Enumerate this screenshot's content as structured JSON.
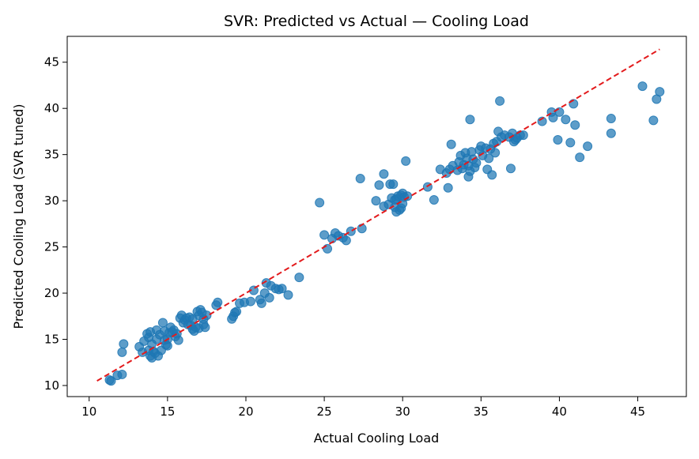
{
  "chart_data": {
    "type": "scatter",
    "title": "SVR: Predicted vs Actual — Cooling Load",
    "xlabel": "Actual Cooling Load",
    "ylabel": "Predicted Cooling Load (SVR tuned)",
    "xlim": [
      8.6,
      48.1
    ],
    "ylim": [
      8.8,
      47.8
    ],
    "xticks": [
      10,
      15,
      20,
      25,
      30,
      35,
      40,
      45
    ],
    "yticks": [
      10,
      15,
      20,
      25,
      30,
      35,
      40,
      45
    ],
    "grid": false,
    "point_color": "#1f77b4",
    "line_color": "#e31a1c",
    "reference_line": {
      "style": "dashed",
      "from": [
        10.5,
        10.5
      ],
      "to": [
        46.4,
        46.4
      ]
    },
    "points": [
      [
        11.3,
        10.6
      ],
      [
        11.4,
        10.5
      ],
      [
        11.8,
        11.1
      ],
      [
        12.1,
        11.2
      ],
      [
        12.1,
        13.6
      ],
      [
        12.2,
        14.5
      ],
      [
        13.2,
        14.2
      ],
      [
        13.4,
        13.6
      ],
      [
        13.5,
        14.8
      ],
      [
        13.7,
        15.6
      ],
      [
        13.8,
        13.8
      ],
      [
        13.8,
        15.2
      ],
      [
        13.9,
        15.8
      ],
      [
        13.9,
        13.2
      ],
      [
        14.0,
        14.5
      ],
      [
        14.0,
        13.0
      ],
      [
        14.1,
        13.7
      ],
      [
        14.2,
        13.5
      ],
      [
        14.3,
        15.0
      ],
      [
        14.3,
        16.0
      ],
      [
        14.4,
        13.2
      ],
      [
        14.5,
        15.5
      ],
      [
        14.6,
        13.8
      ],
      [
        14.7,
        16.8
      ],
      [
        14.8,
        14.9
      ],
      [
        14.8,
        15.9
      ],
      [
        14.9,
        14.4
      ],
      [
        15.0,
        14.3
      ],
      [
        15.0,
        15.0
      ],
      [
        15.1,
        15.7
      ],
      [
        15.2,
        16.3
      ],
      [
        15.3,
        15.8
      ],
      [
        15.4,
        16.0
      ],
      [
        15.5,
        15.3
      ],
      [
        15.6,
        15.6
      ],
      [
        15.7,
        14.9
      ],
      [
        15.8,
        17.3
      ],
      [
        15.9,
        17.6
      ],
      [
        16.0,
        16.8
      ],
      [
        16.1,
        17.1
      ],
      [
        16.2,
        17.3
      ],
      [
        16.3,
        16.6
      ],
      [
        16.4,
        17.4
      ],
      [
        16.5,
        16.5
      ],
      [
        16.6,
        16.1
      ],
      [
        16.6,
        17.2
      ],
      [
        16.7,
        15.9
      ],
      [
        16.8,
        16.3
      ],
      [
        16.9,
        18.0
      ],
      [
        17.0,
        17.6
      ],
      [
        17.0,
        16.2
      ],
      [
        17.1,
        18.2
      ],
      [
        17.2,
        17.9
      ],
      [
        17.3,
        17.2
      ],
      [
        17.3,
        16.6
      ],
      [
        17.4,
        16.3
      ],
      [
        17.5,
        17.6
      ],
      [
        18.1,
        18.7
      ],
      [
        18.2,
        19.0
      ],
      [
        19.1,
        17.2
      ],
      [
        19.2,
        17.5
      ],
      [
        19.3,
        17.9
      ],
      [
        19.4,
        18.0
      ],
      [
        19.6,
        18.9
      ],
      [
        19.9,
        19.0
      ],
      [
        20.3,
        19.1
      ],
      [
        20.5,
        20.3
      ],
      [
        20.9,
        19.3
      ],
      [
        21.0,
        18.9
      ],
      [
        21.2,
        20.0
      ],
      [
        21.3,
        21.1
      ],
      [
        21.5,
        19.5
      ],
      [
        21.6,
        20.8
      ],
      [
        21.9,
        20.5
      ],
      [
        22.1,
        20.4
      ],
      [
        22.3,
        20.5
      ],
      [
        22.7,
        19.8
      ],
      [
        23.4,
        21.7
      ],
      [
        24.7,
        29.8
      ],
      [
        25.0,
        26.3
      ],
      [
        25.2,
        24.8
      ],
      [
        25.5,
        25.9
      ],
      [
        25.7,
        26.5
      ],
      [
        25.9,
        26.2
      ],
      [
        26.2,
        26.0
      ],
      [
        26.4,
        25.7
      ],
      [
        26.7,
        26.7
      ],
      [
        27.3,
        32.4
      ],
      [
        27.4,
        27.0
      ],
      [
        28.3,
        30.0
      ],
      [
        28.5,
        31.7
      ],
      [
        28.8,
        32.9
      ],
      [
        28.8,
        29.4
      ],
      [
        29.1,
        29.6
      ],
      [
        29.2,
        31.8
      ],
      [
        29.3,
        30.3
      ],
      [
        29.4,
        31.8
      ],
      [
        29.5,
        30.1
      ],
      [
        29.5,
        29.3
      ],
      [
        29.6,
        30.2
      ],
      [
        29.6,
        28.8
      ],
      [
        29.7,
        30.5
      ],
      [
        29.8,
        29.0
      ],
      [
        29.9,
        29.2
      ],
      [
        29.9,
        30.6
      ],
      [
        30.0,
        29.7
      ],
      [
        30.0,
        30.8
      ],
      [
        30.1,
        30.4
      ],
      [
        30.2,
        34.3
      ],
      [
        30.3,
        30.5
      ],
      [
        31.6,
        31.5
      ],
      [
        32.0,
        30.1
      ],
      [
        32.4,
        33.4
      ],
      [
        32.8,
        33.0
      ],
      [
        32.9,
        31.4
      ],
      [
        33.0,
        33.4
      ],
      [
        33.1,
        36.1
      ],
      [
        33.2,
        33.8
      ],
      [
        33.5,
        33.3
      ],
      [
        33.6,
        34.2
      ],
      [
        33.7,
        34.9
      ],
      [
        33.8,
        33.5
      ],
      [
        33.9,
        33.9
      ],
      [
        34.0,
        35.2
      ],
      [
        34.1,
        34.6
      ],
      [
        34.2,
        33.8
      ],
      [
        34.2,
        32.6
      ],
      [
        34.3,
        38.8
      ],
      [
        34.3,
        33.2
      ],
      [
        34.4,
        35.3
      ],
      [
        34.5,
        34.5
      ],
      [
        34.6,
        33.6
      ],
      [
        34.7,
        34.1
      ],
      [
        34.9,
        35.5
      ],
      [
        35.0,
        35.9
      ],
      [
        35.1,
        34.9
      ],
      [
        35.3,
        35.7
      ],
      [
        35.4,
        33.4
      ],
      [
        35.5,
        34.6
      ],
      [
        35.6,
        35.6
      ],
      [
        35.7,
        32.8
      ],
      [
        35.8,
        36.2
      ],
      [
        35.9,
        35.2
      ],
      [
        36.0,
        36.4
      ],
      [
        36.1,
        37.5
      ],
      [
        36.2,
        40.8
      ],
      [
        36.3,
        36.9
      ],
      [
        36.5,
        37.1
      ],
      [
        36.8,
        36.9
      ],
      [
        36.9,
        33.5
      ],
      [
        37.0,
        37.3
      ],
      [
        37.1,
        36.4
      ],
      [
        37.2,
        36.6
      ],
      [
        37.3,
        36.8
      ],
      [
        37.5,
        37.1
      ],
      [
        37.7,
        37.1
      ],
      [
        38.9,
        38.6
      ],
      [
        39.5,
        39.6
      ],
      [
        39.6,
        39.0
      ],
      [
        39.9,
        36.6
      ],
      [
        40.0,
        39.6
      ],
      [
        40.4,
        38.8
      ],
      [
        40.7,
        36.3
      ],
      [
        40.9,
        40.5
      ],
      [
        41.0,
        38.2
      ],
      [
        41.3,
        34.7
      ],
      [
        41.8,
        35.9
      ],
      [
        43.3,
        37.3
      ],
      [
        43.3,
        38.9
      ],
      [
        45.3,
        42.4
      ],
      [
        46.0,
        38.7
      ],
      [
        46.2,
        41.0
      ],
      [
        46.4,
        41.8
      ]
    ]
  }
}
